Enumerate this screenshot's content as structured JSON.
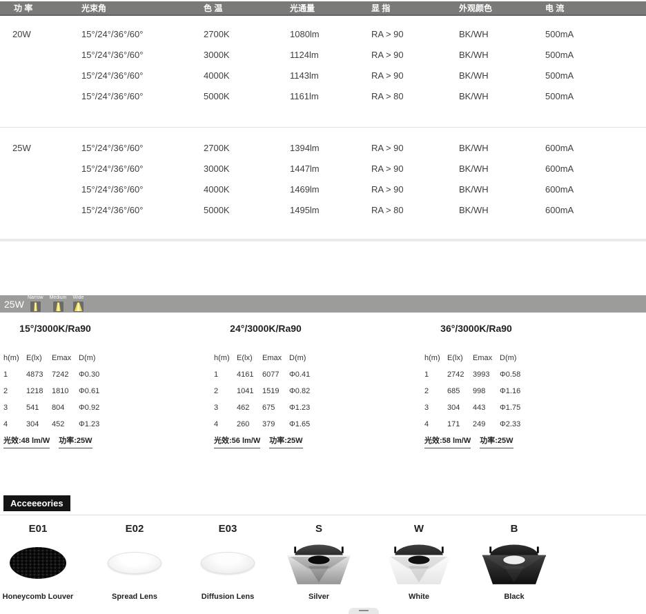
{
  "spec_table": {
    "headers": [
      "功 率",
      "光束角",
      "色 温",
      "光通量",
      "显 指",
      "外观颜色",
      "电 流"
    ],
    "groups": [
      {
        "power": "20W",
        "rows": [
          {
            "beam": "15°/24°/36°/60°",
            "cct": "2700K",
            "flux": "1080lm",
            "cri": "RA > 90",
            "finish": "BK/WH",
            "current": "500mA"
          },
          {
            "beam": "15°/24°/36°/60°",
            "cct": "3000K",
            "flux": "1124lm",
            "cri": "RA > 90",
            "finish": "BK/WH",
            "current": "500mA"
          },
          {
            "beam": "15°/24°/36°/60°",
            "cct": "4000K",
            "flux": "1143lm",
            "cri": "RA > 90",
            "finish": "BK/WH",
            "current": "500mA"
          },
          {
            "beam": "15°/24°/36°/60°",
            "cct": "5000K",
            "flux": "1161lm",
            "cri": "RA > 80",
            "finish": "BK/WH",
            "current": "500mA"
          }
        ]
      },
      {
        "power": "25W",
        "rows": [
          {
            "beam": "15°/24°/36°/60°",
            "cct": "2700K",
            "flux": "1394lm",
            "cri": "RA > 90",
            "finish": "BK/WH",
            "current": "600mA"
          },
          {
            "beam": "15°/24°/36°/60°",
            "cct": "3000K",
            "flux": "1447lm",
            "cri": "RA > 90",
            "finish": "BK/WH",
            "current": "600mA"
          },
          {
            "beam": "15°/24°/36°/60°",
            "cct": "4000K",
            "flux": "1469lm",
            "cri": "RA > 90",
            "finish": "BK/WH",
            "current": "600mA"
          },
          {
            "beam": "15°/24°/36°/60°",
            "cct": "5000K",
            "flux": "1495lm",
            "cri": "RA > 80",
            "finish": "BK/WH",
            "current": "600mA"
          }
        ]
      }
    ]
  },
  "photometric": {
    "band_label": "25W",
    "beam_icons": [
      {
        "label": "Narrow",
        "icon": "narrow-beam-icon"
      },
      {
        "label": "Medium",
        "icon": "medium-beam-icon"
      },
      {
        "label": "Wide",
        "icon": "wide-beam-icon"
      }
    ],
    "tables": [
      {
        "title": "15°/3000K/Ra90",
        "headers": [
          "h(m)",
          "E(lx)",
          "Emax",
          "D(m)"
        ],
        "rows": [
          [
            "1",
            "4873",
            "7242",
            "Φ0.30"
          ],
          [
            "2",
            "1218",
            "1810",
            "Φ0.61"
          ],
          [
            "3",
            "541",
            "804",
            "Φ0.92"
          ],
          [
            "4",
            "304",
            "452",
            "Φ1.23"
          ]
        ],
        "efficacy": "光效:48 lm/W",
        "power": "功率:25W"
      },
      {
        "title": "24°/3000K/Ra90",
        "headers": [
          "h(m)",
          "E(lx)",
          "Emax",
          "D(m)"
        ],
        "rows": [
          [
            "1",
            "4161",
            "6077",
            "Φ0.41"
          ],
          [
            "2",
            "1041",
            "1519",
            "Φ0.82"
          ],
          [
            "3",
            "462",
            "675",
            "Φ1.23"
          ],
          [
            "4",
            "260",
            "379",
            "Φ1.65"
          ]
        ],
        "efficacy": "光效:56 lm/W",
        "power": "功率:25W"
      },
      {
        "title": "36°/3000K/Ra90",
        "headers": [
          "h(m)",
          "E(lx)",
          "Emax",
          "D(m)"
        ],
        "rows": [
          [
            "1",
            "2742",
            "3993",
            "Φ0.58"
          ],
          [
            "2",
            "685",
            "998",
            "Φ1.16"
          ],
          [
            "3",
            "304",
            "443",
            "Φ1.75"
          ],
          [
            "4",
            "171",
            "249",
            "Φ2.33"
          ]
        ],
        "efficacy": "光效:58 lm/W",
        "power": "功率:25W"
      }
    ]
  },
  "accessories": {
    "section_title": "Acceeeories",
    "items": [
      {
        "code": "E01",
        "caption": "Honeycomb Louver",
        "type": "honeycomb",
        "image": "honeycomb-louver"
      },
      {
        "code": "E02",
        "caption": "Spread Lens",
        "type": "lens",
        "image": "spread-lens"
      },
      {
        "code": "E03",
        "caption": "Diffusion Lens",
        "type": "lens-diff",
        "image": "diffusion-lens"
      },
      {
        "code": "S",
        "caption": "Silver",
        "type": "trim",
        "variant": "silver",
        "image": "silver-square-trim"
      },
      {
        "code": "W",
        "caption": "White",
        "type": "trim",
        "variant": "white",
        "image": "white-square-trim"
      },
      {
        "code": "B",
        "caption": "Black",
        "type": "trim",
        "variant": "black",
        "image": "black-square-trim"
      }
    ]
  },
  "colors": {
    "header_band": "#7a7a78",
    "photo_band": "#9c9c9a",
    "beam_yellow": "#f0dc4e",
    "section_black": "#141414",
    "divider_gray": "#eaeaea"
  }
}
